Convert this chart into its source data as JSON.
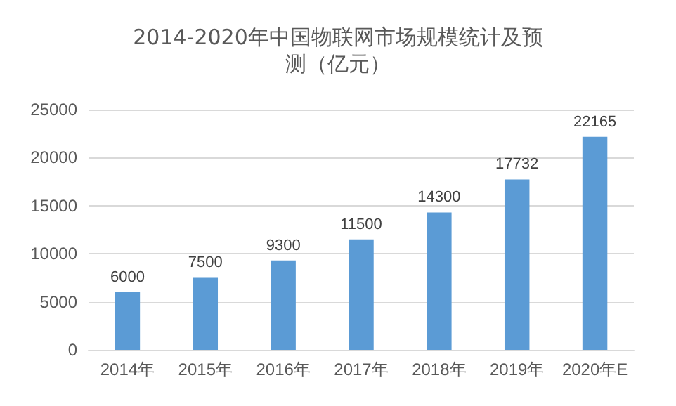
{
  "chart_data": {
    "type": "bar",
    "title": "2014-2020年中国物联网市场规模统计及预测（亿元）",
    "categories": [
      "2014年",
      "2015年",
      "2016年",
      "2017年",
      "2018年",
      "2019年",
      "2020年E"
    ],
    "values": [
      6000,
      7500,
      9300,
      11500,
      14300,
      17732,
      22165
    ],
    "color": "#5b9bd5",
    "ylim": [
      0,
      25000
    ],
    "yticks": [
      0,
      5000,
      10000,
      15000,
      20000,
      25000
    ],
    "grid": "y",
    "data_labels": true
  }
}
